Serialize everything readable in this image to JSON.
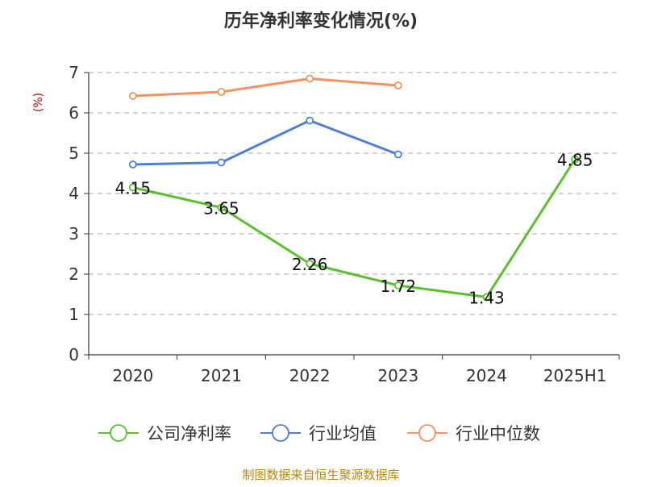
{
  "chart_data": {
    "type": "line",
    "title": "历年净利率变化情况(%)",
    "ylabel": "(%)",
    "xlabel": "",
    "categories": [
      "2020",
      "2021",
      "2022",
      "2023",
      "2024",
      "2025H1"
    ],
    "ylim": [
      0,
      7
    ],
    "yticks": [
      "0",
      "1",
      "2",
      "3",
      "4",
      "5",
      "6",
      "7"
    ],
    "grid": true,
    "legend_position": "bottom",
    "series": [
      {
        "name": "公司净利率",
        "color": "#5ac02c",
        "values": [
          4.15,
          3.65,
          2.26,
          1.72,
          1.43,
          4.85
        ],
        "labels": [
          "4.15",
          "3.65",
          "2.26",
          "1.72",
          "1.43",
          "4.85"
        ]
      },
      {
        "name": "行业均值",
        "color": "#4c7fdc",
        "values": [
          4.72,
          4.77,
          5.81,
          4.97,
          null,
          null
        ]
      },
      {
        "name": "行业中位数",
        "color": "#f5925e",
        "values": [
          6.42,
          6.52,
          6.85,
          6.68,
          null,
          null
        ]
      }
    ]
  },
  "footer": {
    "source": "制图数据来自恒生聚源数据库"
  },
  "colors": {
    "title": "#333333",
    "axis": "#333333",
    "ylabel": "#cc0000",
    "footer": "#b8860b",
    "grid": "#bbbbbb"
  }
}
